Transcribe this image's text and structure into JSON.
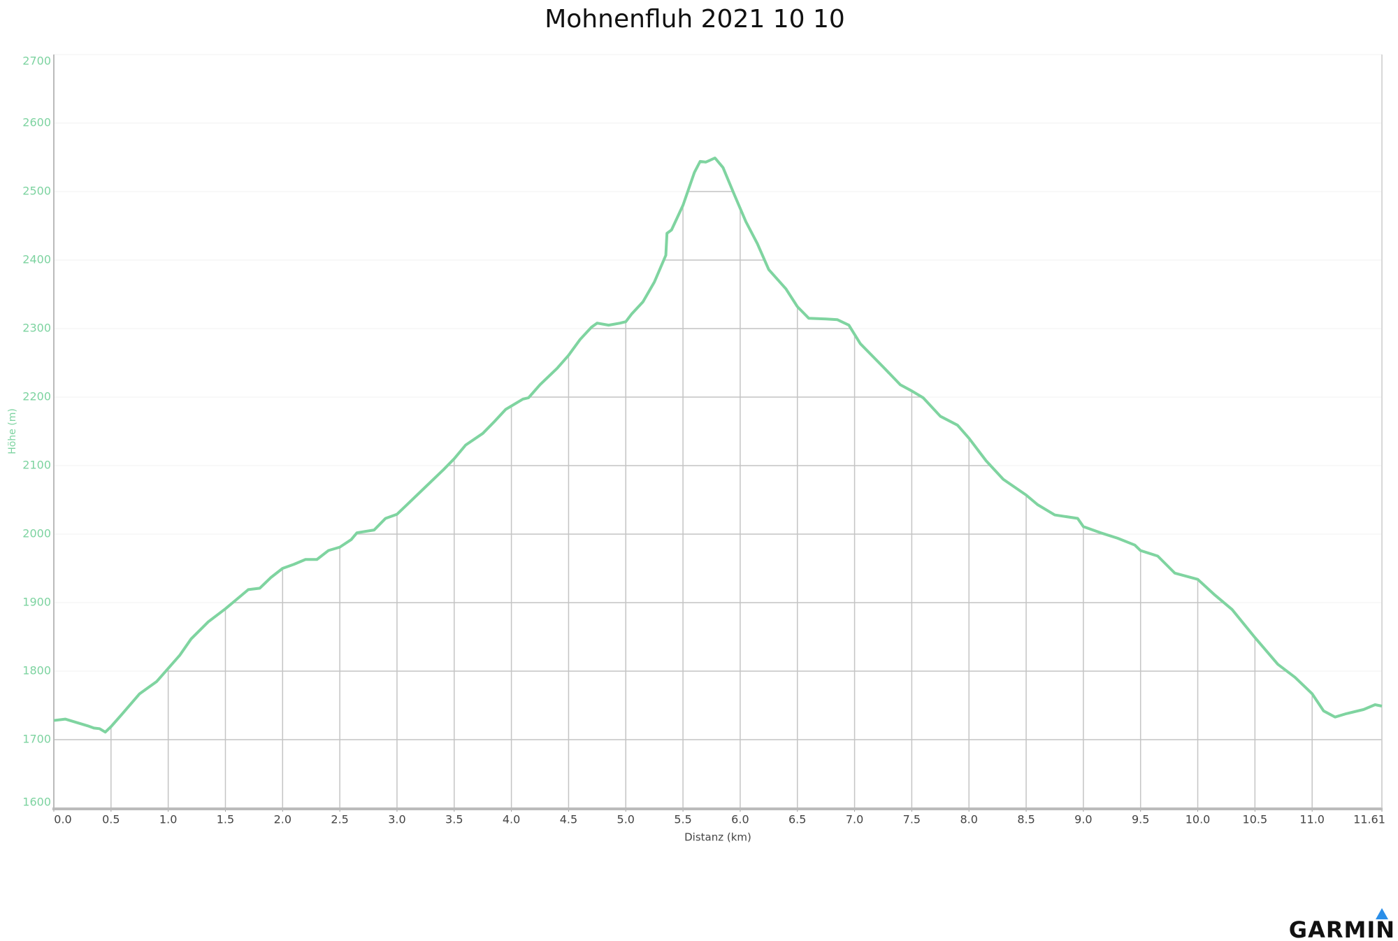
{
  "chart_data": {
    "type": "line",
    "title": "Mohnenfluh 2021 10 10",
    "xlabel": "Distanz (km)",
    "ylabel": "Höhe (m)",
    "logo": "GARMIN",
    "color": "#7fd4a0",
    "grid": true,
    "xlim": [
      0,
      11.61
    ],
    "ylim": [
      1600,
      2700
    ],
    "xticks": [
      {
        "value": 0,
        "label": "0.0"
      },
      0.5,
      {
        "value": 1,
        "label": "1.0"
      },
      1.5,
      {
        "value": 2,
        "label": "2.0"
      },
      2.5,
      {
        "value": 3,
        "label": "3.0"
      },
      3.5,
      {
        "value": 4,
        "label": "4.0"
      },
      4.5,
      {
        "value": 5,
        "label": "5.0"
      },
      5.5,
      {
        "value": 6,
        "label": "6.0"
      },
      6.5,
      {
        "value": 7,
        "label": "7.0"
      },
      7.5,
      {
        "value": 8,
        "label": "8.0"
      },
      8.5,
      {
        "value": 9,
        "label": "9.0"
      },
      9.5,
      {
        "value": 10,
        "label": "10.0"
      },
      10.5,
      {
        "value": 11,
        "label": "11.0"
      },
      11.61
    ],
    "yticks": [
      1600,
      1700,
      1800,
      1900,
      2000,
      2100,
      2200,
      2300,
      2400,
      2500,
      2600,
      2700
    ],
    "x": [
      0,
      0.1,
      0.3,
      0.35,
      0.4,
      0.45,
      0.5,
      0.6,
      0.75,
      0.9,
      1.0,
      1.1,
      1.2,
      1.35,
      1.5,
      1.6,
      1.7,
      1.8,
      1.9,
      2.0,
      2.1,
      2.2,
      2.3,
      2.4,
      2.5,
      2.6,
      2.65,
      2.8,
      2.9,
      3.0,
      3.1,
      3.25,
      3.4,
      3.5,
      3.6,
      3.75,
      3.85,
      3.95,
      4.1,
      4.15,
      4.25,
      4.4,
      4.5,
      4.6,
      4.7,
      4.75,
      4.85,
      4.95,
      5.0,
      5.05,
      5.15,
      5.25,
      5.35,
      5.36,
      5.4,
      5.5,
      5.6,
      5.65,
      5.7,
      5.78,
      5.85,
      5.95,
      6.05,
      6.15,
      6.25,
      6.4,
      6.5,
      6.6,
      6.75,
      6.85,
      6.95,
      7.05,
      7.25,
      7.4,
      7.5,
      7.6,
      7.75,
      7.9,
      8.0,
      8.15,
      8.3,
      8.5,
      8.6,
      8.75,
      8.95,
      9.0,
      9.15,
      9.3,
      9.45,
      9.5,
      9.65,
      9.8,
      10.0,
      10.15,
      10.3,
      10.5,
      10.7,
      10.85,
      11.0,
      11.1,
      11.2,
      11.3,
      11.45,
      11.55,
      11.61
    ],
    "values": [
      1728,
      1730,
      1720,
      1717,
      1716,
      1711,
      1719,
      1738,
      1767,
      1785,
      1804,
      1823,
      1847,
      1872,
      1891,
      1905,
      1919,
      1921,
      1937,
      1950,
      1956,
      1963,
      1963,
      1976,
      1981,
      1992,
      2002,
      2006,
      2023,
      2029,
      2045,
      2069,
      2093,
      2110,
      2130,
      2147,
      2164,
      2182,
      2197,
      2199,
      2218,
      2242,
      2261,
      2284,
      2302,
      2308,
      2305,
      2308,
      2310,
      2321,
      2339,
      2368,
      2407,
      2439,
      2444,
      2480,
      2528,
      2544,
      2543,
      2549,
      2535,
      2495,
      2456,
      2424,
      2386,
      2358,
      2332,
      2315,
      2314,
      2313,
      2305,
      2278,
      2244,
      2218,
      2209,
      2199,
      2172,
      2159,
      2140,
      2107,
      2080,
      2057,
      2043,
      2028,
      2023,
      2011,
      2002,
      1994,
      1984,
      1976,
      1968,
      1943,
      1934,
      1911,
      1890,
      1849,
      1810,
      1791,
      1767,
      1742,
      1733,
      1738,
      1744,
      1751,
      1749
    ]
  }
}
